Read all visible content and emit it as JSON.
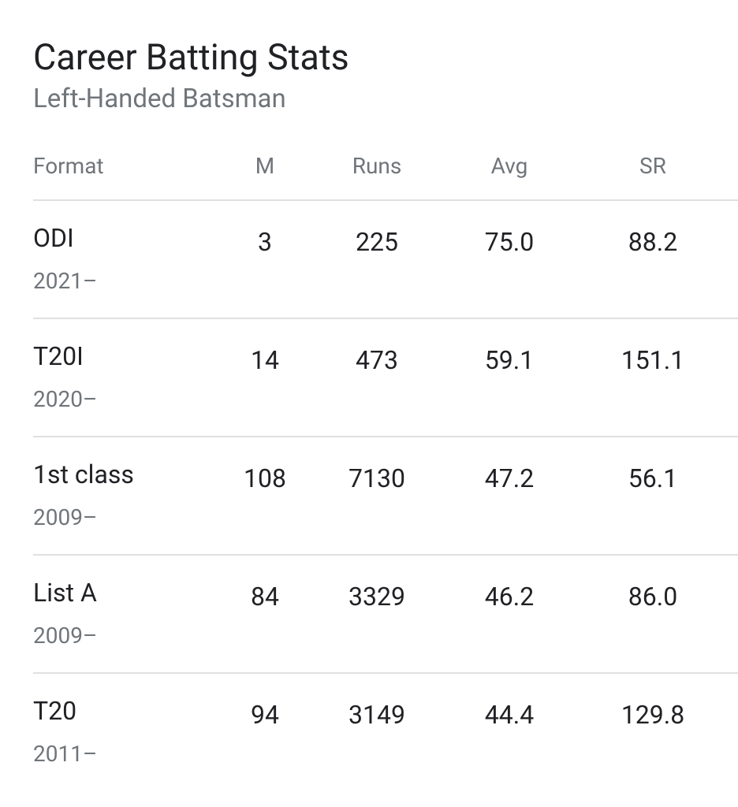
{
  "header": {
    "title": "Career Batting Stats",
    "subtitle": "Left-Handed Batsman"
  },
  "table": {
    "columns": [
      "Format",
      "M",
      "Runs",
      "Avg",
      "SR"
    ],
    "rows": [
      {
        "format": "ODI",
        "years": "2021–",
        "cells": [
          "3",
          "225",
          "75.0",
          "88.2"
        ]
      },
      {
        "format": "T20I",
        "years": "2020–",
        "cells": [
          "14",
          "473",
          "59.1",
          "151.1"
        ]
      },
      {
        "format": "1st class",
        "years": "2009–",
        "cells": [
          "108",
          "7130",
          "47.2",
          "56.1"
        ]
      },
      {
        "format": "List A",
        "years": "2009–",
        "cells": [
          "84",
          "3329",
          "46.2",
          "86.0"
        ]
      },
      {
        "format": "T20",
        "years": "2011–",
        "cells": [
          "94",
          "3149",
          "44.4",
          "129.8"
        ]
      }
    ]
  }
}
